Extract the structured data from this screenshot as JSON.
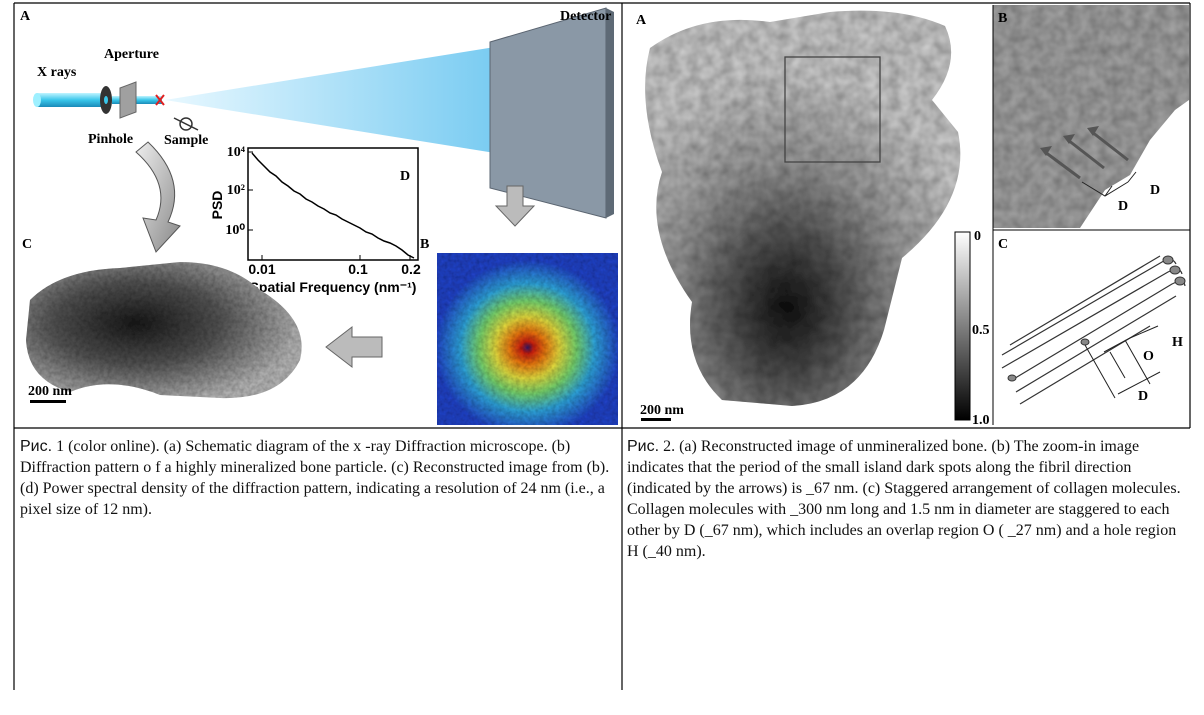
{
  "figure1": {
    "panel_labels": {
      "a": "A",
      "b": "B",
      "c": "C",
      "d": "D"
    },
    "labels": {
      "x_rays": "X rays",
      "aperture": "Aperture",
      "detector": "Detector",
      "pinhole": "Pinhole",
      "sample": "Sample"
    },
    "psd_plot": {
      "y_label": "PSD",
      "x_label": "Spatial Frequency (nm⁻¹)",
      "yticks": [
        "10⁴",
        "10²",
        "10⁰"
      ],
      "xticks": [
        "0.01",
        "0.1",
        "0.2"
      ]
    },
    "scale_bar": "200 nm"
  },
  "figure2": {
    "panel_labels": {
      "a": "A",
      "b": "B",
      "c": "C"
    },
    "colorbar_ticks": [
      "0",
      "0.5",
      "1.0"
    ],
    "zoom_labels": [
      "D",
      "D"
    ],
    "diagram_labels": [
      "O",
      "H",
      "D"
    ],
    "scale_bar": "200 nm"
  },
  "captions": [
    {
      "prefix": "Рис.",
      "paragraphs": [
        "1 (color online). (a) Schematic diagram of the x -ray Diffraction  microscope. (b) Diffraction pattern o f a highly mineralized bone particle. (c) Reconstructed image from (b). (d) Power spectral density of the diffraction pattern, indicating a resolution of 24 nm (i.e., a pixel size of 12 nm)."
      ]
    },
    {
      "prefix": "Рис.",
      "paragraphs": [
        "2. (a) Reconstructed image of unmineralized bone. (b) The zoom-in image indicates that the period of the small island dark spots along the fibril direction (indicated by the arrows) is _67 nm. (c) Staggered arrangement of collagen molecules.",
        "Collagen molecules with _300 nm long and 1.5 nm in diameter are staggered to each other by D (_67 nm), which includes an overlap region O ( _27 nm) and  a hole region H (_40 nm)."
      ]
    }
  ]
}
